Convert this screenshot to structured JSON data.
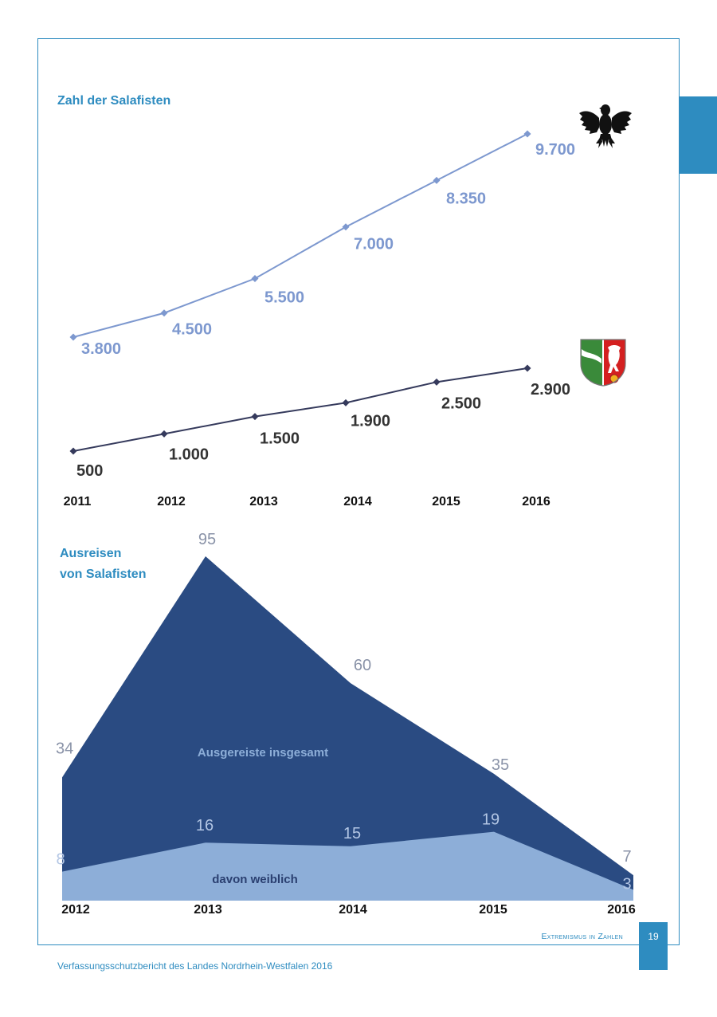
{
  "page": {
    "section_label": "Extremismus in Zahlen",
    "page_number": "19",
    "footer": "Verfassungsschutzbericht des Landes Nordrhein-Westfalen 2016"
  },
  "colors": {
    "accent": "#2e8cc0",
    "federal_line": "#7d98cf",
    "nrw_line": "#353a5c",
    "area_total": "#2a4b82",
    "area_female": "#8daed8"
  },
  "icons": {
    "federal": "federal-eagle-icon",
    "nrw": "nrw-coat-of-arms-icon"
  },
  "chart_data": [
    {
      "type": "line",
      "title": "Zahl der Salafisten",
      "x": [
        "2011",
        "2012",
        "2013",
        "2014",
        "2015",
        "2016"
      ],
      "series": [
        {
          "name": "Bund",
          "values": [
            3800,
            4500,
            5500,
            7000,
            8350,
            9700
          ],
          "labels": [
            "3.800",
            "4.500",
            "5.500",
            "7.000",
            "8.350",
            "9.700"
          ]
        },
        {
          "name": "Nordrhein-Westfalen",
          "values": [
            500,
            1000,
            1500,
            1900,
            2500,
            2900
          ],
          "labels": [
            "500",
            "1.000",
            "1.500",
            "1.900",
            "2.500",
            "2.900"
          ]
        }
      ]
    },
    {
      "type": "area",
      "title": [
        "Ausreisen",
        "von Salafisten"
      ],
      "x": [
        "2012",
        "2013",
        "2014",
        "2015",
        "2016"
      ],
      "series": [
        {
          "name": "Ausgereiste insgesamt",
          "values": [
            34,
            95,
            60,
            35,
            7
          ],
          "labels": [
            "34",
            "95",
            "60",
            "35",
            "7"
          ]
        },
        {
          "name": "davon weiblich",
          "values": [
            8,
            16,
            15,
            19,
            3
          ],
          "labels": [
            "8",
            "16",
            "15",
            "19",
            "3"
          ]
        }
      ],
      "ylim": [
        0,
        95
      ]
    }
  ]
}
